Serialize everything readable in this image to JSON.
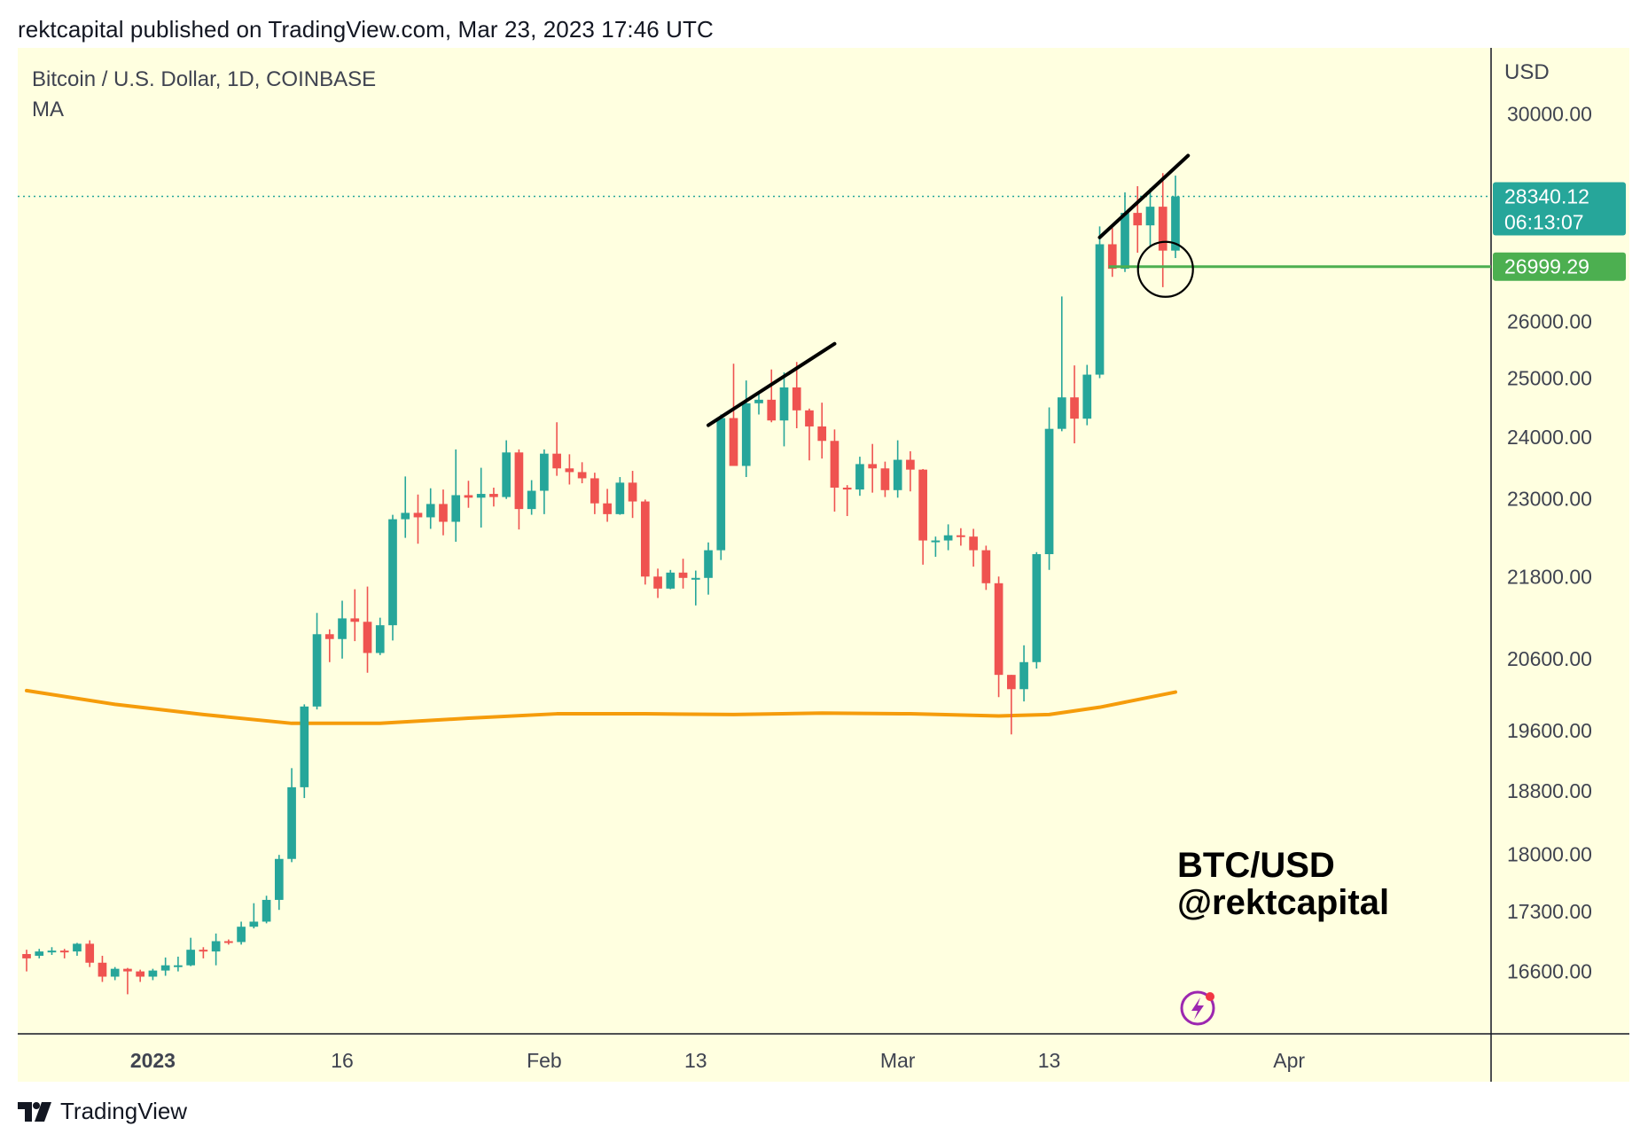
{
  "header": {
    "published_line": "rektcapital published on TradingView.com, Mar 23, 2023 17:46 UTC"
  },
  "legend": {
    "symbol_line": "Bitcoin / U.S. Dollar, 1D, COINBASE",
    "indicator": "MA"
  },
  "axis": {
    "currency": "USD"
  },
  "watermark": {
    "line1": "BTC/USD",
    "line2": "@rektcapital"
  },
  "footer": {
    "brand": "TradingView"
  },
  "colors": {
    "background": "#ffffe0",
    "up": "#26a69a",
    "down": "#ef5350",
    "ma": "#f59c0b",
    "support": "#4caf50",
    "last_price_tag": "#26a69a"
  },
  "chart_data": {
    "type": "candlestick",
    "title": "Bitcoin / U.S. Dollar, 1D, COINBASE",
    "y_axis": {
      "label": "USD",
      "ticks": [
        30000,
        26000,
        25000,
        24000,
        23000,
        21800,
        20600,
        19600,
        18800,
        18000,
        17300,
        16600
      ],
      "tick_labels": [
        "30000.00",
        "26000.00",
        "25000.00",
        "24000.00",
        "23000.00",
        "21800.00",
        "20600.00",
        "19600.00",
        "18800.00",
        "18000.00",
        "17300.00",
        "16600.00"
      ],
      "range": [
        15900,
        31400
      ],
      "scale": "log"
    },
    "x_axis": {
      "ticks": [
        {
          "label": "2023",
          "date": "2023-01-01",
          "bold": true
        },
        {
          "label": "16",
          "date": "2023-01-16",
          "bold": false
        },
        {
          "label": "Feb",
          "date": "2023-02-01",
          "bold": false
        },
        {
          "label": "13",
          "date": "2023-02-13",
          "bold": false
        },
        {
          "label": "Mar",
          "date": "2023-03-01",
          "bold": false
        },
        {
          "label": "13",
          "date": "2023-03-13",
          "bold": false
        },
        {
          "label": "Apr",
          "date": "2023-04-01",
          "bold": false
        }
      ],
      "range": [
        "2022-12-22",
        "2023-04-17"
      ]
    },
    "candles": [
      {
        "date": "2022-12-22",
        "o": 16800,
        "h": 16850,
        "l": 16600,
        "c": 16750
      },
      {
        "date": "2022-12-23",
        "o": 16780,
        "h": 16860,
        "l": 16750,
        "c": 16830
      },
      {
        "date": "2022-12-24",
        "o": 16820,
        "h": 16880,
        "l": 16790,
        "c": 16840
      },
      {
        "date": "2022-12-25",
        "o": 16840,
        "h": 16860,
        "l": 16750,
        "c": 16830
      },
      {
        "date": "2022-12-26",
        "o": 16830,
        "h": 16930,
        "l": 16780,
        "c": 16920
      },
      {
        "date": "2022-12-27",
        "o": 16920,
        "h": 16960,
        "l": 16650,
        "c": 16700
      },
      {
        "date": "2022-12-28",
        "o": 16700,
        "h": 16780,
        "l": 16480,
        "c": 16540
      },
      {
        "date": "2022-12-29",
        "o": 16540,
        "h": 16650,
        "l": 16500,
        "c": 16630
      },
      {
        "date": "2022-12-30",
        "o": 16630,
        "h": 16640,
        "l": 16340,
        "c": 16600
      },
      {
        "date": "2022-12-31",
        "o": 16600,
        "h": 16620,
        "l": 16480,
        "c": 16540
      },
      {
        "date": "2023-01-01",
        "o": 16540,
        "h": 16630,
        "l": 16500,
        "c": 16610
      },
      {
        "date": "2023-01-02",
        "o": 16610,
        "h": 16760,
        "l": 16550,
        "c": 16670
      },
      {
        "date": "2023-01-03",
        "o": 16670,
        "h": 16770,
        "l": 16600,
        "c": 16670
      },
      {
        "date": "2023-01-04",
        "o": 16670,
        "h": 16990,
        "l": 16660,
        "c": 16850
      },
      {
        "date": "2023-01-05",
        "o": 16850,
        "h": 16880,
        "l": 16750,
        "c": 16830
      },
      {
        "date": "2023-01-06",
        "o": 16830,
        "h": 17040,
        "l": 16670,
        "c": 16950
      },
      {
        "date": "2023-01-07",
        "o": 16950,
        "h": 16970,
        "l": 16910,
        "c": 16940
      },
      {
        "date": "2023-01-08",
        "o": 16940,
        "h": 17180,
        "l": 16910,
        "c": 17120
      },
      {
        "date": "2023-01-09",
        "o": 17120,
        "h": 17400,
        "l": 17100,
        "c": 17180
      },
      {
        "date": "2023-01-10",
        "o": 17180,
        "h": 17490,
        "l": 17160,
        "c": 17440
      },
      {
        "date": "2023-01-11",
        "o": 17440,
        "h": 17990,
        "l": 17320,
        "c": 17940
      },
      {
        "date": "2023-01-12",
        "o": 17940,
        "h": 19100,
        "l": 17900,
        "c": 18850
      },
      {
        "date": "2023-01-13",
        "o": 18850,
        "h": 19960,
        "l": 18710,
        "c": 19930
      },
      {
        "date": "2023-01-14",
        "o": 19930,
        "h": 21260,
        "l": 19890,
        "c": 20950
      },
      {
        "date": "2023-01-15",
        "o": 20950,
        "h": 21020,
        "l": 20550,
        "c": 20880
      },
      {
        "date": "2023-01-16",
        "o": 20880,
        "h": 21440,
        "l": 20600,
        "c": 21180
      },
      {
        "date": "2023-01-17",
        "o": 21180,
        "h": 21610,
        "l": 20850,
        "c": 21130
      },
      {
        "date": "2023-01-18",
        "o": 21130,
        "h": 21650,
        "l": 20400,
        "c": 20680
      },
      {
        "date": "2023-01-19",
        "o": 20680,
        "h": 21190,
        "l": 20650,
        "c": 21080
      },
      {
        "date": "2023-01-20",
        "o": 21080,
        "h": 22750,
        "l": 20860,
        "c": 22680
      },
      {
        "date": "2023-01-21",
        "o": 22680,
        "h": 23360,
        "l": 22390,
        "c": 22780
      },
      {
        "date": "2023-01-22",
        "o": 22780,
        "h": 23070,
        "l": 22300,
        "c": 22710
      },
      {
        "date": "2023-01-23",
        "o": 22710,
        "h": 23170,
        "l": 22530,
        "c": 22920
      },
      {
        "date": "2023-01-24",
        "o": 22920,
        "h": 23150,
        "l": 22430,
        "c": 22640
      },
      {
        "date": "2023-01-25",
        "o": 22640,
        "h": 23800,
        "l": 22330,
        "c": 23060
      },
      {
        "date": "2023-01-26",
        "o": 23060,
        "h": 23290,
        "l": 22860,
        "c": 23020
      },
      {
        "date": "2023-01-27",
        "o": 23020,
        "h": 23500,
        "l": 22550,
        "c": 23080
      },
      {
        "date": "2023-01-28",
        "o": 23080,
        "h": 23180,
        "l": 22880,
        "c": 23030
      },
      {
        "date": "2023-01-29",
        "o": 23030,
        "h": 23950,
        "l": 23000,
        "c": 23750
      },
      {
        "date": "2023-01-30",
        "o": 23750,
        "h": 23800,
        "l": 22520,
        "c": 22840
      },
      {
        "date": "2023-01-31",
        "o": 22840,
        "h": 23300,
        "l": 22750,
        "c": 23130
      },
      {
        "date": "2023-02-01",
        "o": 23130,
        "h": 23800,
        "l": 22760,
        "c": 23730
      },
      {
        "date": "2023-02-02",
        "o": 23730,
        "h": 24250,
        "l": 23370,
        "c": 23490
      },
      {
        "date": "2023-02-03",
        "o": 23490,
        "h": 23720,
        "l": 23230,
        "c": 23430
      },
      {
        "date": "2023-02-04",
        "o": 23430,
        "h": 23590,
        "l": 23250,
        "c": 23330
      },
      {
        "date": "2023-02-05",
        "o": 23330,
        "h": 23420,
        "l": 22760,
        "c": 22930
      },
      {
        "date": "2023-02-06",
        "o": 22930,
        "h": 23160,
        "l": 22640,
        "c": 22760
      },
      {
        "date": "2023-02-07",
        "o": 22760,
        "h": 23350,
        "l": 22750,
        "c": 23260
      },
      {
        "date": "2023-02-08",
        "o": 23260,
        "h": 23450,
        "l": 22700,
        "c": 22960
      },
      {
        "date": "2023-02-09",
        "o": 22960,
        "h": 22990,
        "l": 21680,
        "c": 21800
      },
      {
        "date": "2023-02-10",
        "o": 21800,
        "h": 21920,
        "l": 21480,
        "c": 21620
      },
      {
        "date": "2023-02-11",
        "o": 21620,
        "h": 21900,
        "l": 21610,
        "c": 21860
      },
      {
        "date": "2023-02-12",
        "o": 21860,
        "h": 22070,
        "l": 21620,
        "c": 21780
      },
      {
        "date": "2023-02-13",
        "o": 21780,
        "h": 21890,
        "l": 21370,
        "c": 21780
      },
      {
        "date": "2023-02-14",
        "o": 21780,
        "h": 22320,
        "l": 21530,
        "c": 22200
      },
      {
        "date": "2023-02-15",
        "o": 22200,
        "h": 24380,
        "l": 22050,
        "c": 24320
      },
      {
        "date": "2023-02-16",
        "o": 24320,
        "h": 25250,
        "l": 23530,
        "c": 23530
      },
      {
        "date": "2023-02-17",
        "o": 23530,
        "h": 24960,
        "l": 23350,
        "c": 24570
      },
      {
        "date": "2023-02-18",
        "o": 24570,
        "h": 24780,
        "l": 24380,
        "c": 24630
      },
      {
        "date": "2023-02-19",
        "o": 24630,
        "h": 25150,
        "l": 24250,
        "c": 24280
      },
      {
        "date": "2023-02-20",
        "o": 24280,
        "h": 25100,
        "l": 23850,
        "c": 24840
      },
      {
        "date": "2023-02-21",
        "o": 24840,
        "h": 25280,
        "l": 24150,
        "c": 24450
      },
      {
        "date": "2023-02-22",
        "o": 24450,
        "h": 24480,
        "l": 23620,
        "c": 24180
      },
      {
        "date": "2023-02-23",
        "o": 24180,
        "h": 24580,
        "l": 23650,
        "c": 23940
      },
      {
        "date": "2023-02-24",
        "o": 23940,
        "h": 24130,
        "l": 22800,
        "c": 23180
      },
      {
        "date": "2023-02-25",
        "o": 23180,
        "h": 23220,
        "l": 22730,
        "c": 23150
      },
      {
        "date": "2023-02-26",
        "o": 23150,
        "h": 23680,
        "l": 23050,
        "c": 23560
      },
      {
        "date": "2023-02-27",
        "o": 23560,
        "h": 23890,
        "l": 23100,
        "c": 23490
      },
      {
        "date": "2023-02-28",
        "o": 23490,
        "h": 23600,
        "l": 23030,
        "c": 23140
      },
      {
        "date": "2023-03-01",
        "o": 23140,
        "h": 23950,
        "l": 23020,
        "c": 23630
      },
      {
        "date": "2023-03-02",
        "o": 23630,
        "h": 23770,
        "l": 23120,
        "c": 23470
      },
      {
        "date": "2023-03-03",
        "o": 23470,
        "h": 23480,
        "l": 21980,
        "c": 22350
      },
      {
        "date": "2023-03-04",
        "o": 22350,
        "h": 22410,
        "l": 22100,
        "c": 22350
      },
      {
        "date": "2023-03-05",
        "o": 22350,
        "h": 22600,
        "l": 22200,
        "c": 22430
      },
      {
        "date": "2023-03-06",
        "o": 22430,
        "h": 22540,
        "l": 22270,
        "c": 22410
      },
      {
        "date": "2023-03-07",
        "o": 22410,
        "h": 22530,
        "l": 21950,
        "c": 22200
      },
      {
        "date": "2023-03-08",
        "o": 22200,
        "h": 22270,
        "l": 21600,
        "c": 21700
      },
      {
        "date": "2023-03-09",
        "o": 21700,
        "h": 21800,
        "l": 20060,
        "c": 20370
      },
      {
        "date": "2023-03-10",
        "o": 20370,
        "h": 20370,
        "l": 19550,
        "c": 20170
      },
      {
        "date": "2023-03-11",
        "o": 20170,
        "h": 20790,
        "l": 20000,
        "c": 20550
      },
      {
        "date": "2023-03-12",
        "o": 20550,
        "h": 22170,
        "l": 20460,
        "c": 22140
      },
      {
        "date": "2023-03-13",
        "o": 22140,
        "h": 24500,
        "l": 21900,
        "c": 24140
      },
      {
        "date": "2023-03-14",
        "o": 24140,
        "h": 26450,
        "l": 24100,
        "c": 24670
      },
      {
        "date": "2023-03-15",
        "o": 24670,
        "h": 25220,
        "l": 23900,
        "c": 24310
      },
      {
        "date": "2023-03-16",
        "o": 24310,
        "h": 25230,
        "l": 24200,
        "c": 25060
      },
      {
        "date": "2023-03-17",
        "o": 25060,
        "h": 27760,
        "l": 25000,
        "c": 27420
      },
      {
        "date": "2023-03-18",
        "o": 27420,
        "h": 27730,
        "l": 26810,
        "c": 26960
      },
      {
        "date": "2023-03-19",
        "o": 26960,
        "h": 28420,
        "l": 26900,
        "c": 28020
      },
      {
        "date": "2023-03-20",
        "o": 28020,
        "h": 28540,
        "l": 27260,
        "c": 27780
      },
      {
        "date": "2023-03-21",
        "o": 27780,
        "h": 28500,
        "l": 27380,
        "c": 28140
      },
      {
        "date": "2023-03-22",
        "o": 28140,
        "h": 28800,
        "l": 26620,
        "c": 27300
      },
      {
        "date": "2023-03-23",
        "o": 27300,
        "h": 28750,
        "l": 27160,
        "c": 28340.12
      }
    ],
    "ma": [
      {
        "date": "2022-12-22",
        "v": 20150
      },
      {
        "date": "2022-12-29",
        "v": 19960
      },
      {
        "date": "2023-01-05",
        "v": 19820
      },
      {
        "date": "2023-01-12",
        "v": 19700
      },
      {
        "date": "2023-01-19",
        "v": 19700
      },
      {
        "date": "2023-01-26",
        "v": 19770
      },
      {
        "date": "2023-02-02",
        "v": 19830
      },
      {
        "date": "2023-02-09",
        "v": 19830
      },
      {
        "date": "2023-02-16",
        "v": 19820
      },
      {
        "date": "2023-02-23",
        "v": 19840
      },
      {
        "date": "2023-03-02",
        "v": 19830
      },
      {
        "date": "2023-03-09",
        "v": 19800
      },
      {
        "date": "2023-03-13",
        "v": 19820
      },
      {
        "date": "2023-03-17",
        "v": 19920
      },
      {
        "date": "2023-03-23",
        "v": 20130
      }
    ],
    "trendlines": [
      {
        "from": {
          "date": "2023-02-14",
          "price": 24200
        },
        "to": {
          "date": "2023-02-24",
          "price": 25600
        }
      },
      {
        "from": {
          "date": "2023-03-17",
          "price": 27550
        },
        "to": {
          "date": "2023-03-24",
          "price": 29150
        }
      }
    ],
    "support_line": {
      "price": 26999.29,
      "label": "26999.29",
      "from_date": "2023-03-18"
    },
    "highlight_circle": {
      "date": "2023-03-22",
      "price": 26999.29
    },
    "last_price": {
      "price": 28340.12,
      "label": "28340.12",
      "countdown": "06:13:07"
    }
  }
}
